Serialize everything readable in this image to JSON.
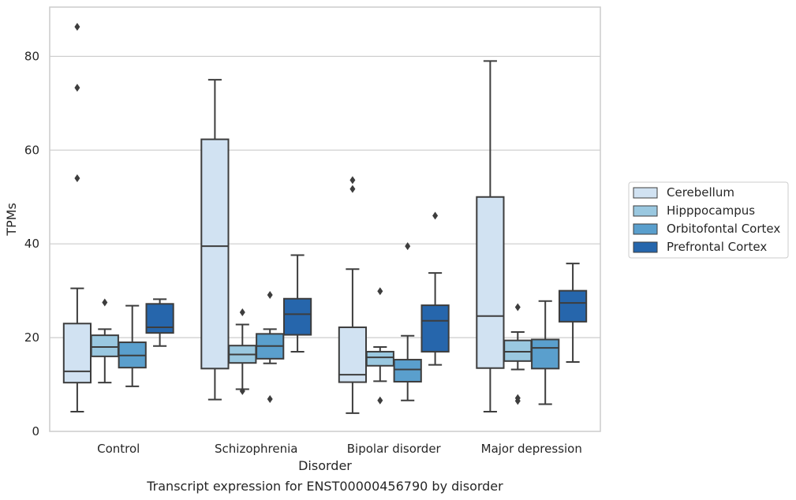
{
  "chart_data": {
    "type": "box",
    "xlabel": "Disorder",
    "ylabel": "TPMs",
    "caption": "Transcript expression for ENST00000456790 by disorder",
    "ylim": [
      0,
      90.5
    ],
    "yticks": [
      0,
      20,
      40,
      60,
      80
    ],
    "grid": "horizontal",
    "legend_position": "right",
    "categories": [
      "Control",
      "Schizophrenia",
      "Bipolar disorder",
      "Major depression"
    ],
    "series": [
      {
        "name": "Cerebellum",
        "color": "#d1e2f2",
        "boxes": [
          {
            "whislo": 4.2,
            "q1": 10.4,
            "med": 12.8,
            "q3": 23.0,
            "whishi": 30.5,
            "fliers": [
              54.0,
              73.3,
              86.3
            ]
          },
          {
            "whislo": 6.8,
            "q1": 13.4,
            "med": 39.5,
            "q3": 62.3,
            "whishi": 75.0,
            "fliers": []
          },
          {
            "whislo": 3.9,
            "q1": 10.5,
            "med": 12.1,
            "q3": 22.2,
            "whishi": 34.6,
            "fliers": [
              51.7,
              53.6
            ]
          },
          {
            "whislo": 4.2,
            "q1": 13.5,
            "med": 24.6,
            "q3": 50.0,
            "whishi": 79.0,
            "fliers": []
          }
        ]
      },
      {
        "name": "Hipppocampus",
        "color": "#9ac8e0",
        "boxes": [
          {
            "whislo": 10.4,
            "q1": 16.0,
            "med": 18.0,
            "q3": 20.5,
            "whishi": 21.8,
            "fliers": [
              27.5
            ]
          },
          {
            "whislo": 9.0,
            "q1": 14.6,
            "med": 16.4,
            "q3": 18.3,
            "whishi": 22.8,
            "fliers": [
              8.6,
              25.4
            ]
          },
          {
            "whislo": 10.7,
            "q1": 14.0,
            "med": 15.8,
            "q3": 17.0,
            "whishi": 18.0,
            "fliers": [
              6.6,
              29.9
            ]
          },
          {
            "whislo": 13.2,
            "q1": 15.0,
            "med": 17.0,
            "q3": 19.4,
            "whishi": 21.2,
            "fliers": [
              6.5,
              7.1,
              26.5
            ]
          }
        ]
      },
      {
        "name": "Orbitofontal Cortex",
        "color": "#5a9fcd",
        "boxes": [
          {
            "whislo": 9.6,
            "q1": 13.6,
            "med": 16.2,
            "q3": 19.0,
            "whishi": 26.8,
            "fliers": []
          },
          {
            "whislo": 14.5,
            "q1": 15.5,
            "med": 18.2,
            "q3": 20.8,
            "whishi": 21.8,
            "fliers": [
              6.9,
              29.1
            ]
          },
          {
            "whislo": 6.6,
            "q1": 10.6,
            "med": 13.2,
            "q3": 15.3,
            "whishi": 20.4,
            "fliers": [
              39.5
            ]
          },
          {
            "whislo": 5.8,
            "q1": 13.4,
            "med": 17.8,
            "q3": 19.6,
            "whishi": 27.8,
            "fliers": []
          }
        ]
      },
      {
        "name": "Prefrontal Cortex",
        "color": "#2666ac",
        "boxes": [
          {
            "whislo": 18.2,
            "q1": 21.0,
            "med": 22.2,
            "q3": 27.2,
            "whishi": 28.2,
            "fliers": []
          },
          {
            "whislo": 17.0,
            "q1": 20.6,
            "med": 25.0,
            "q3": 28.3,
            "whishi": 37.6,
            "fliers": []
          },
          {
            "whislo": 14.2,
            "q1": 17.0,
            "med": 23.6,
            "q3": 26.9,
            "whishi": 33.8,
            "fliers": [
              46.0
            ]
          },
          {
            "whislo": 14.8,
            "q1": 23.4,
            "med": 27.4,
            "q3": 30.0,
            "whishi": 35.8,
            "fliers": []
          }
        ]
      }
    ]
  }
}
